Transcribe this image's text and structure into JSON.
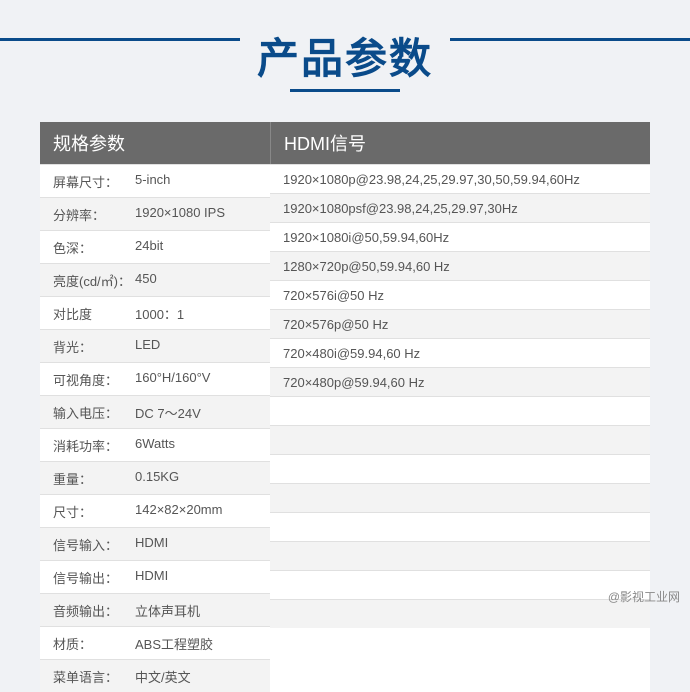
{
  "title": "产品参数",
  "colors": {
    "brand": "#0a4b8a",
    "header_bg": "#6a6a6a",
    "header_text": "#ffffff",
    "row_even_bg": "#f3f3f3",
    "row_border": "#e0e0e0",
    "page_bg": "#f0f2f5",
    "text": "#555555"
  },
  "left": {
    "header": "规格参数",
    "rows": [
      {
        "label": "屏幕尺寸：",
        "value": "5-inch"
      },
      {
        "label": "分辨率：",
        "value": "1920×1080 IPS"
      },
      {
        "label": "色深：",
        "value": "24bit"
      },
      {
        "label": "亮度(cd/㎡)：",
        "value": "450"
      },
      {
        "label": "对比度",
        "value": "1000：1"
      },
      {
        "label": "背光：",
        "value": "LED"
      },
      {
        "label": "可视角度：",
        "value": "160°H/160°V"
      },
      {
        "label": "输入电压：",
        "value": "DC 7～24V"
      },
      {
        "label": "消耗功率：",
        "value": "6Watts"
      },
      {
        "label": "重量：",
        "value": "0.15KG"
      },
      {
        "label": "尺寸：",
        "value": "142×82×20mm"
      },
      {
        "label": "信号输入：",
        "value": "HDMI"
      },
      {
        "label": "信号输出：",
        "value": "HDMI"
      },
      {
        "label": "音频输出：",
        "value": "立体声耳机"
      },
      {
        "label": "材质：",
        "value": "ABS工程塑胶"
      },
      {
        "label": "菜单语言：",
        "value": "中文/英文"
      }
    ]
  },
  "right": {
    "header": "HDMI信号",
    "rows": [
      "1920×1080p@23.98,24,25,29.97,30,50,59.94,60Hz",
      "1920×1080psf@23.98,24,25,29.97,30Hz",
      "1920×1080i@50,59.94,60Hz",
      "1280×720p@50,59.94,60 Hz",
      "720×576i@50 Hz",
      "720×576p@50 Hz",
      "720×480i@59.94,60 Hz",
      "720×480p@59.94,60 Hz"
    ]
  },
  "watermark": "@影视工业网"
}
